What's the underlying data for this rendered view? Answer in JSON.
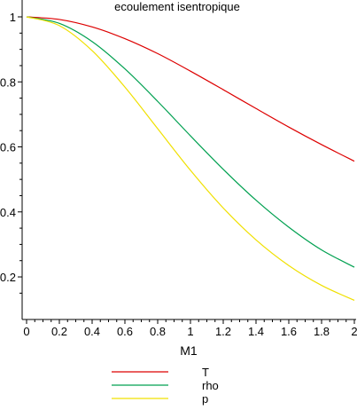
{
  "chart_data": {
    "type": "line",
    "title": "ecoulement  isentropique",
    "xlabel": "M1",
    "ylabel": "",
    "xlim": [
      0,
      2
    ],
    "ylim": [
      0.11,
      1.0
    ],
    "grid": false,
    "legend_position": "bottom",
    "x_ticks": [
      "0",
      "0.2",
      "0.4",
      "0.6",
      "0.8",
      "1",
      "1.2",
      "1.4",
      "1.6",
      "1.8",
      "2"
    ],
    "y_ticks": [
      {
        "value": 1.0,
        "label": "1"
      },
      {
        "value": 0.8,
        "label": "0.8"
      },
      {
        "value": 0.6,
        "label": "0.6"
      },
      {
        "value": 0.4,
        "label": "0.4"
      },
      {
        "value": 0.2,
        "label": "0.2"
      }
    ],
    "x": [
      0,
      0.2,
      0.4,
      0.6,
      0.8,
      1.0,
      1.2,
      1.4,
      1.6,
      1.8,
      2.0
    ],
    "series": [
      {
        "name": "T",
        "color": "#dd0000",
        "values": [
          1.0,
          0.992,
          0.969,
          0.933,
          0.887,
          0.833,
          0.776,
          0.718,
          0.661,
          0.607,
          0.556
        ]
      },
      {
        "name": "rho",
        "color": "#00a050",
        "values": [
          1.0,
          0.98,
          0.924,
          0.84,
          0.74,
          0.634,
          0.531,
          0.436,
          0.353,
          0.283,
          0.23
        ]
      },
      {
        "name": "p",
        "color": "#f0e000",
        "values": [
          1.0,
          0.973,
          0.896,
          0.784,
          0.656,
          0.528,
          0.412,
          0.314,
          0.235,
          0.174,
          0.128
        ]
      }
    ]
  }
}
